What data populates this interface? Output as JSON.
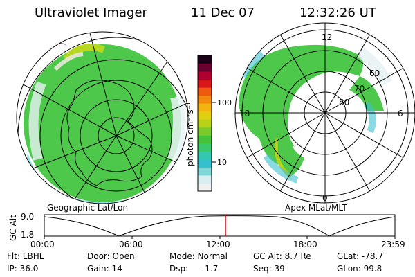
{
  "header": {
    "title": "Ultraviolet Imager",
    "date": "11 Dec 07",
    "time": "12:32:26 UT"
  },
  "left_map": {
    "caption": "Geographic Lat/Lon"
  },
  "right_map": {
    "caption": "Apex MLat/MLT",
    "mlt_labels": [
      "12",
      "18",
      "6",
      "0"
    ],
    "lat_labels": [
      "60",
      "70",
      "80"
    ]
  },
  "colorbar": {
    "label": "photon cm⁻²s⁻¹",
    "ticks": [
      "100",
      "10"
    ],
    "colors": [
      "#f0f0f0",
      "#d8eef0",
      "#7fd8d8",
      "#35c0d0",
      "#33c7b0",
      "#3bc86a",
      "#44c33a",
      "#7acb2a",
      "#b6d318",
      "#e0d010",
      "#f3b410",
      "#f38a10",
      "#ef5a10",
      "#d81818",
      "#b00030",
      "#6a0030",
      "#1a0018"
    ]
  },
  "timeline": {
    "ylabel": "GC Alt",
    "y_high": "9.0",
    "y_low": "1.8",
    "x_ticks": [
      "00:00",
      "06:00",
      "12:00",
      "18:00",
      "23:59"
    ],
    "marker_time": "12:32",
    "marker_color": "#d00000"
  },
  "info": {
    "filter": "Flt: LBHL",
    "ip": "IP: 36.0",
    "door": "Door: Open",
    "gain": "Gain: 14",
    "mode": "Mode: Normal",
    "dsp_label": "Dsp:",
    "dsp_value": "-1.7",
    "gc_alt": "GC Alt: 8.7 Re",
    "seq": "Seq: 39",
    "glat": "GLat: -78.7",
    "glon": "GLon: 99.8"
  }
}
